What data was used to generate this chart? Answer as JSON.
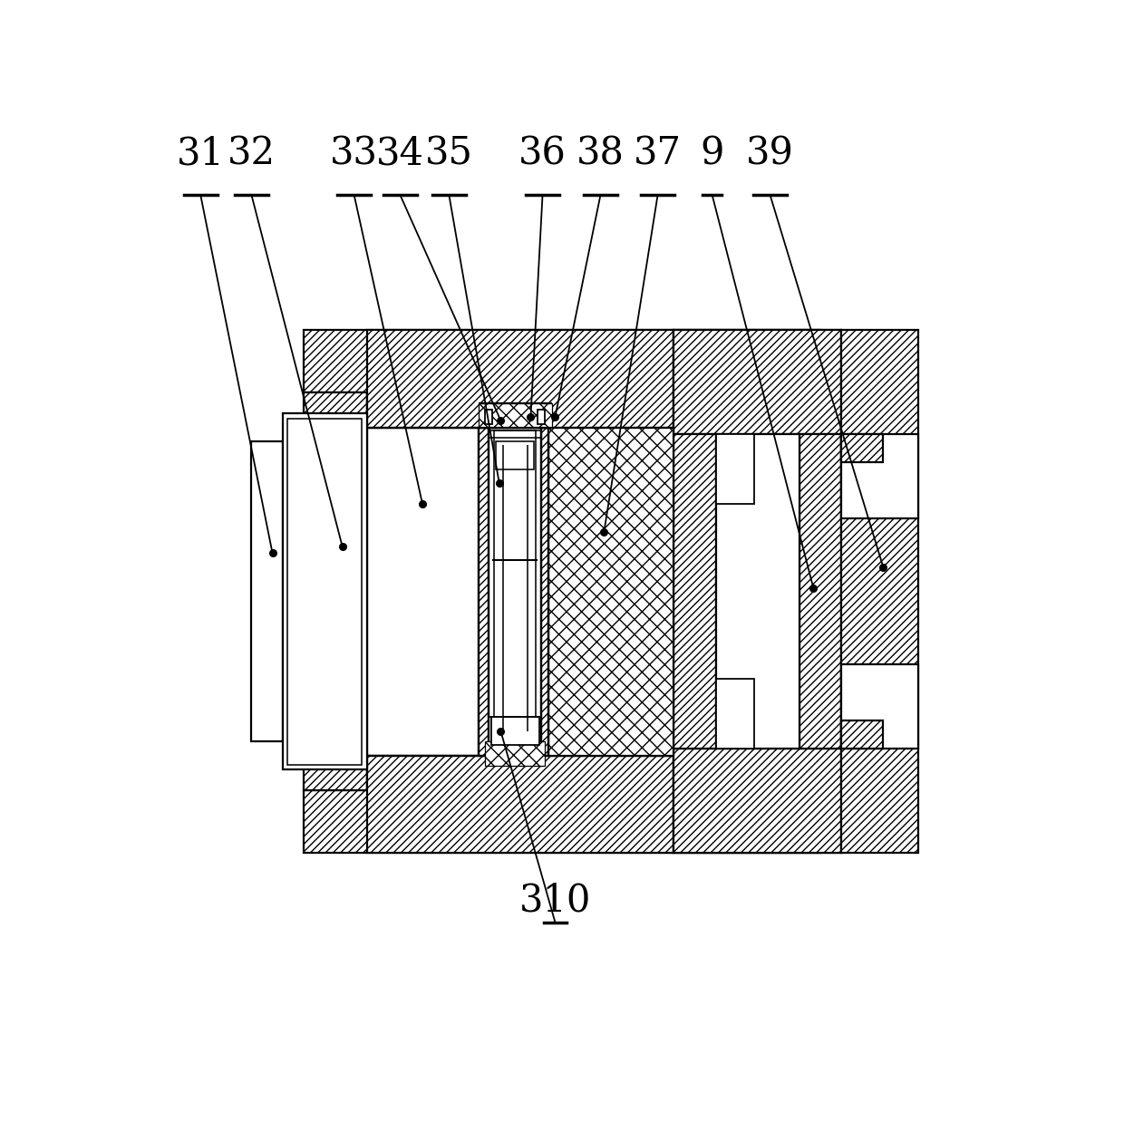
{
  "bg_color": "#ffffff",
  "line_color": "#000000",
  "lw": 1.6,
  "label_fontsize": 30
}
